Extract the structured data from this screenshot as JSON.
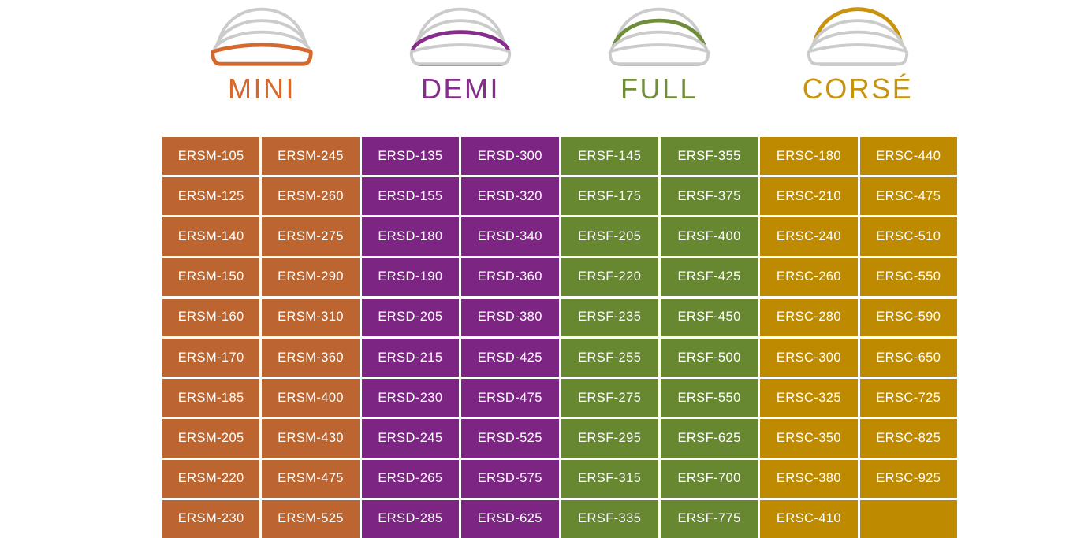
{
  "chart_data": {
    "type": "table",
    "title": "",
    "column_groups": [
      "MINI",
      "DEMI",
      "FULL",
      "CORSÉ"
    ],
    "columns_per_group": 2,
    "rows": [
      [
        "ERSM-105",
        "ERSM-245",
        "ERSD-135",
        "ERSD-300",
        "ERSF-145",
        "ERSF-355",
        "ERSC-180",
        "ERSC-440"
      ],
      [
        "ERSM-125",
        "ERSM-260",
        "ERSD-155",
        "ERSD-320",
        "ERSF-175",
        "ERSF-375",
        "ERSC-210",
        "ERSC-475"
      ],
      [
        "ERSM-140",
        "ERSM-275",
        "ERSD-180",
        "ERSD-340",
        "ERSF-205",
        "ERSF-400",
        "ERSC-240",
        "ERSC-510"
      ],
      [
        "ERSM-150",
        "ERSM-290",
        "ERSD-190",
        "ERSD-360",
        "ERSF-220",
        "ERSF-425",
        "ERSC-260",
        "ERSC-550"
      ],
      [
        "ERSM-160",
        "ERSM-310",
        "ERSD-205",
        "ERSD-380",
        "ERSF-235",
        "ERSF-450",
        "ERSC-280",
        "ERSC-590"
      ],
      [
        "ERSM-170",
        "ERSM-360",
        "ERSD-215",
        "ERSD-425",
        "ERSF-255",
        "ERSF-500",
        "ERSC-300",
        "ERSC-650"
      ],
      [
        "ERSM-185",
        "ERSM-400",
        "ERSD-230",
        "ERSD-475",
        "ERSF-275",
        "ERSF-550",
        "ERSC-325",
        "ERSC-725"
      ],
      [
        "ERSM-205",
        "ERSM-430",
        "ERSD-245",
        "ERSD-525",
        "ERSF-295",
        "ERSF-625",
        "ERSC-350",
        "ERSC-825"
      ],
      [
        "ERSM-220",
        "ERSM-475",
        "ERSD-265",
        "ERSD-575",
        "ERSF-315",
        "ERSF-700",
        "ERSC-380",
        "ERSC-925"
      ],
      [
        "ERSM-230",
        "ERSM-525",
        "ERSD-285",
        "ERSD-625",
        "ERSF-335",
        "ERSF-775",
        "ERSC-410",
        ""
      ]
    ]
  },
  "profiles": [
    {
      "id": "mini",
      "accent": "#D5682C",
      "cell_color": "#BC6530",
      "dome_index": 3
    },
    {
      "id": "demi",
      "accent": "#862C8A",
      "cell_color": "#7C2583",
      "dome_index": 2
    },
    {
      "id": "full",
      "accent": "#6F8D3B",
      "cell_color": "#678731",
      "dome_index": 1
    },
    {
      "id": "corse",
      "accent": "#C8930F",
      "cell_color": "#BE8B00",
      "dome_index": 0
    }
  ],
  "icon_gray": "#CBCBCB",
  "cell_text_color": "#FFFFFF"
}
